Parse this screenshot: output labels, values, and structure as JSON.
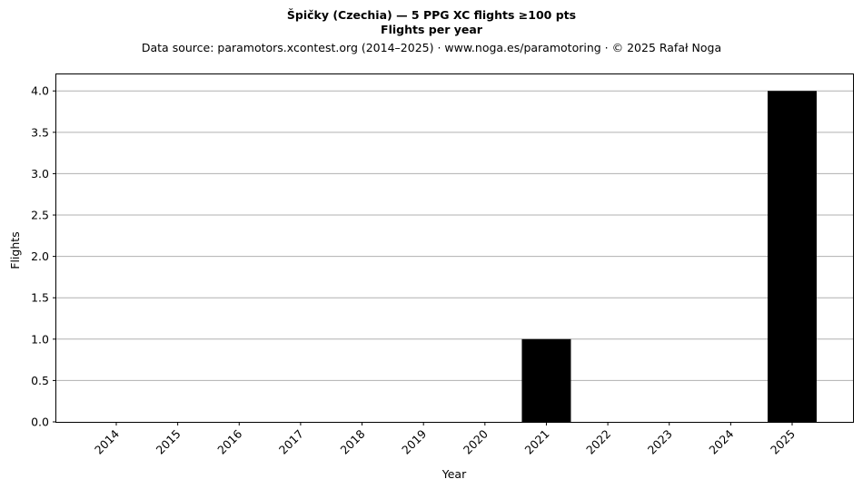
{
  "chart_data": {
    "type": "bar",
    "title": "Špičky (Czechia)  —  5 PPG XC flights ≥100 pts",
    "subtitle": "Flights per year",
    "source_note": "Data source: paramotors.xcontest.org (2014–2025)  ·  www.noga.es/paramotoring  ·  © 2025 Rafał Noga",
    "xlabel": "Year",
    "ylabel": "Flights",
    "categories": [
      "2014",
      "2015",
      "2016",
      "2017",
      "2018",
      "2019",
      "2020",
      "2021",
      "2022",
      "2023",
      "2024",
      "2025"
    ],
    "values": [
      0,
      0,
      0,
      0,
      0,
      0,
      0,
      1,
      0,
      0,
      0,
      4
    ],
    "ylim": [
      0,
      4.2
    ],
    "yticks": [
      "0.0",
      "0.5",
      "1.0",
      "1.5",
      "2.0",
      "2.5",
      "3.0",
      "3.5",
      "4.0"
    ],
    "grid": "y",
    "bar_color": "#000000",
    "grid_color": "#b0b0b0"
  }
}
